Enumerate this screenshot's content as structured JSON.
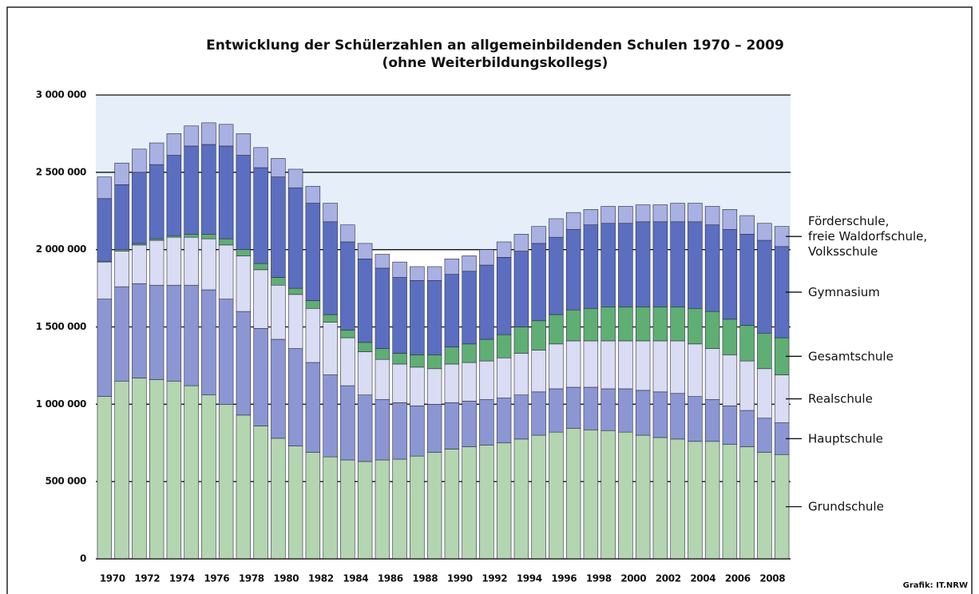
{
  "chart_data": {
    "type": "stacked_bar",
    "title": "Entwicklung der Schülerzahlen an allgemeinbildenden Schulen 1970 – 2009",
    "subtitle": "(ohne Weiterbildungskollegs)",
    "source": "Grafik: IT.NRW",
    "categories": [
      "1970",
      null,
      "1972",
      null,
      "1974",
      null,
      "1976",
      null,
      "1978",
      null,
      "1980",
      null,
      "1982",
      null,
      "1984",
      null,
      "1986",
      null,
      "1988",
      null,
      "1990",
      null,
      "1992",
      null,
      "1994",
      null,
      "1996",
      null,
      "1998",
      null,
      "2000",
      null,
      "2002",
      null,
      "2004",
      null,
      "2006",
      null,
      "2008",
      null
    ],
    "series": [
      {
        "name": "Grundschule",
        "color": "#b3d5b0",
        "values": [
          1050000,
          1150000,
          1170000,
          1160000,
          1150000,
          1120000,
          1060000,
          1000000,
          930000,
          860000,
          780000,
          730000,
          690000,
          660000,
          640000,
          630000,
          640000,
          645000,
          665000,
          690000,
          710000,
          725000,
          735000,
          750000,
          775000,
          800000,
          820000,
          845000,
          835000,
          830000,
          820000,
          800000,
          785000,
          775000,
          760000,
          760000,
          740000,
          725000,
          690000,
          675000
        ]
      },
      {
        "name": "Hauptschule",
        "color": "#8b96d3",
        "values": [
          630000,
          610000,
          610000,
          610000,
          620000,
          650000,
          680000,
          680000,
          670000,
          630000,
          640000,
          630000,
          580000,
          530000,
          480000,
          430000,
          390000,
          365000,
          325000,
          310000,
          300000,
          295000,
          295000,
          290000,
          285000,
          280000,
          280000,
          265000,
          275000,
          270000,
          280000,
          290000,
          295000,
          295000,
          290000,
          270000,
          250000,
          235000,
          220000,
          205000
        ]
      },
      {
        "name": "Realschule",
        "color": "#d9dcf2",
        "values": [
          240000,
          230000,
          250000,
          290000,
          310000,
          310000,
          330000,
          350000,
          360000,
          380000,
          350000,
          350000,
          350000,
          340000,
          310000,
          280000,
          260000,
          250000,
          250000,
          230000,
          250000,
          250000,
          250000,
          260000,
          270000,
          270000,
          290000,
          300000,
          300000,
          310000,
          310000,
          320000,
          330000,
          340000,
          340000,
          330000,
          330000,
          320000,
          320000,
          310000
        ]
      },
      {
        "name": "Gesamtschule",
        "color": "#5fae74",
        "values": [
          5000,
          10000,
          10000,
          10000,
          10000,
          20000,
          30000,
          40000,
          40000,
          40000,
          50000,
          40000,
          50000,
          50000,
          50000,
          60000,
          70000,
          70000,
          80000,
          90000,
          110000,
          120000,
          140000,
          150000,
          170000,
          190000,
          190000,
          200000,
          210000,
          220000,
          220000,
          220000,
          220000,
          220000,
          230000,
          240000,
          230000,
          230000,
          230000,
          240000
        ]
      },
      {
        "name": "Gymnasium",
        "color": "#5b6ec0",
        "values": [
          405000,
          420000,
          460000,
          480000,
          520000,
          570000,
          580000,
          600000,
          610000,
          620000,
          650000,
          650000,
          630000,
          600000,
          570000,
          540000,
          520000,
          490000,
          480000,
          480000,
          470000,
          470000,
          480000,
          500000,
          490000,
          500000,
          500000,
          520000,
          540000,
          540000,
          540000,
          550000,
          550000,
          550000,
          560000,
          560000,
          580000,
          590000,
          600000,
          590000
        ]
      },
      {
        "name": "Förderschule, freie Waldorfschule, Volksschule",
        "color": "#a9b0e2",
        "values": [
          140000,
          140000,
          150000,
          140000,
          140000,
          130000,
          140000,
          140000,
          140000,
          130000,
          120000,
          120000,
          110000,
          120000,
          110000,
          100000,
          90000,
          100000,
          90000,
          90000,
          100000,
          100000,
          100000,
          100000,
          110000,
          110000,
          120000,
          110000,
          100000,
          110000,
          110000,
          110000,
          110000,
          120000,
          120000,
          120000,
          130000,
          120000,
          110000,
          130000
        ]
      }
    ],
    "ylim": [
      0,
      3000000
    ],
    "yticks": [
      0,
      {
        "value": 500000,
        "label": "500 000"
      },
      {
        "value": 1000000,
        "label": "1 000 000"
      },
      {
        "value": 1500000,
        "label": "1 500 000"
      },
      {
        "value": 2000000,
        "label": "2 000 000"
      },
      {
        "value": 2500000,
        "label": "2 500 000"
      },
      {
        "value": 3000000,
        "label": "3 000 000"
      }
    ],
    "grid": true,
    "legend": "right"
  }
}
